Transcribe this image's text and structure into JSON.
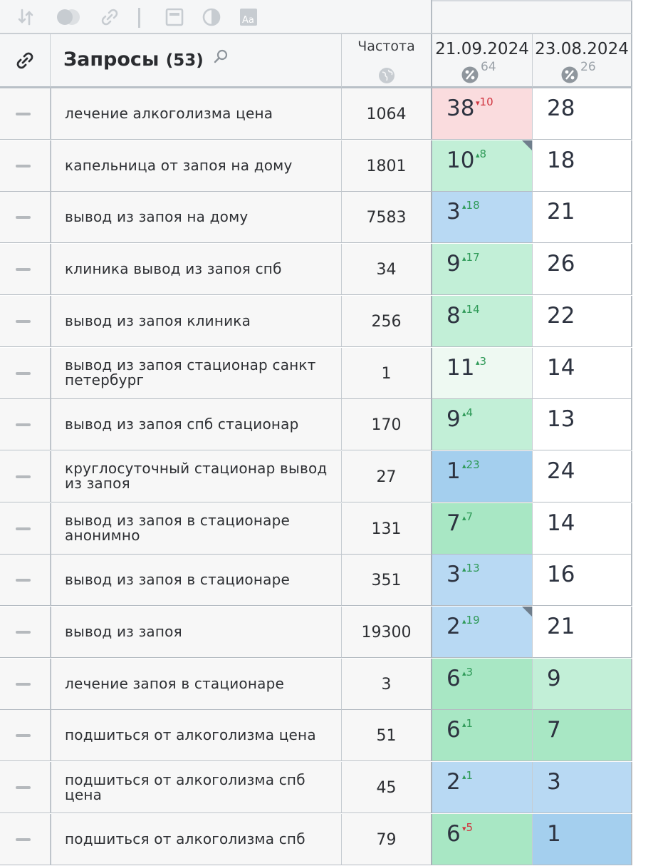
{
  "toolbar": {
    "icons": [
      "sort-icon",
      "toggle-icon",
      "link-icon",
      "window-icon",
      "contrast-icon",
      "font-icon"
    ]
  },
  "header": {
    "title": "Запросы",
    "count": "(53)",
    "frequency_label": "Частота",
    "dates": [
      {
        "date": "21.09.2024",
        "visibility": "64"
      },
      {
        "date": "23.08.2024",
        "visibility": "26"
      }
    ]
  },
  "colors": {
    "red": "#fadcde",
    "green": "#c2efd7",
    "green_strong": "#a8e7c4",
    "green_light": "#eef9f2",
    "blue": "#b8d9f3",
    "blue_strong": "#a4cfee",
    "up": "#2f9a58",
    "down": "#d0343f"
  },
  "rows": [
    {
      "query": "лечение алкоголизма цена",
      "freq": "1064",
      "d1": {
        "pos": "38",
        "delta": "10",
        "dir": "down",
        "bg": "red",
        "flag": false
      },
      "d2": {
        "pos": "28",
        "bg": "white"
      }
    },
    {
      "query": "капельница от запоя на дому",
      "freq": "1801",
      "d1": {
        "pos": "10",
        "delta": "8",
        "dir": "up",
        "bg": "green",
        "flag": true
      },
      "d2": {
        "pos": "18",
        "bg": "white"
      }
    },
    {
      "query": "вывод из запоя на дому",
      "freq": "7583",
      "d1": {
        "pos": "3",
        "delta": "18",
        "dir": "up",
        "bg": "blue",
        "flag": false
      },
      "d2": {
        "pos": "21",
        "bg": "white"
      }
    },
    {
      "query": "клиника вывод из запоя спб",
      "freq": "34",
      "d1": {
        "pos": "9",
        "delta": "17",
        "dir": "up",
        "bg": "green",
        "flag": false
      },
      "d2": {
        "pos": "26",
        "bg": "white"
      }
    },
    {
      "query": "вывод из запоя клиника",
      "freq": "256",
      "d1": {
        "pos": "8",
        "delta": "14",
        "dir": "up",
        "bg": "green",
        "flag": false
      },
      "d2": {
        "pos": "22",
        "bg": "white"
      }
    },
    {
      "query": "вывод из запоя стационар санкт петербург",
      "freq": "1",
      "d1": {
        "pos": "11",
        "delta": "3",
        "dir": "up",
        "bg": "green3",
        "flag": false
      },
      "d2": {
        "pos": "14",
        "bg": "white"
      }
    },
    {
      "query": "вывод из запоя спб стационар",
      "freq": "170",
      "d1": {
        "pos": "9",
        "delta": "4",
        "dir": "up",
        "bg": "green",
        "flag": false
      },
      "d2": {
        "pos": "13",
        "bg": "white"
      }
    },
    {
      "query": "круглосуточный стационар вывод из запоя",
      "freq": "27",
      "d1": {
        "pos": "1",
        "delta": "23",
        "dir": "up",
        "bg": "blue2",
        "flag": false
      },
      "d2": {
        "pos": "24",
        "bg": "white"
      }
    },
    {
      "query": "вывод из запоя в стационаре анонимно",
      "freq": "131",
      "d1": {
        "pos": "7",
        "delta": "7",
        "dir": "up",
        "bg": "green2",
        "flag": false
      },
      "d2": {
        "pos": "14",
        "bg": "white"
      }
    },
    {
      "query": "вывод из запоя в стационаре",
      "freq": "351",
      "d1": {
        "pos": "3",
        "delta": "13",
        "dir": "up",
        "bg": "blue",
        "flag": false
      },
      "d2": {
        "pos": "16",
        "bg": "white"
      }
    },
    {
      "query": "вывод из запоя",
      "freq": "19300",
      "d1": {
        "pos": "2",
        "delta": "19",
        "dir": "up",
        "bg": "blue",
        "flag": true
      },
      "d2": {
        "pos": "21",
        "bg": "white"
      }
    },
    {
      "query": "лечение запоя в стационаре",
      "freq": "3",
      "d1": {
        "pos": "6",
        "delta": "3",
        "dir": "up",
        "bg": "green2",
        "flag": false
      },
      "d2": {
        "pos": "9",
        "bg": "green"
      }
    },
    {
      "query": "подшиться от алкоголизма цена",
      "freq": "51",
      "d1": {
        "pos": "6",
        "delta": "1",
        "dir": "up",
        "bg": "green2",
        "flag": false
      },
      "d2": {
        "pos": "7",
        "bg": "green2"
      }
    },
    {
      "query": "подшиться от алкоголизма спб цена",
      "freq": "45",
      "d1": {
        "pos": "2",
        "delta": "1",
        "dir": "up",
        "bg": "blue",
        "flag": false
      },
      "d2": {
        "pos": "3",
        "bg": "blue"
      }
    },
    {
      "query": "подшиться от алкоголизма спб",
      "freq": "79",
      "d1": {
        "pos": "6",
        "delta": "5",
        "dir": "down",
        "bg": "green2",
        "flag": false
      },
      "d2": {
        "pos": "1",
        "bg": "blue2"
      }
    }
  ]
}
